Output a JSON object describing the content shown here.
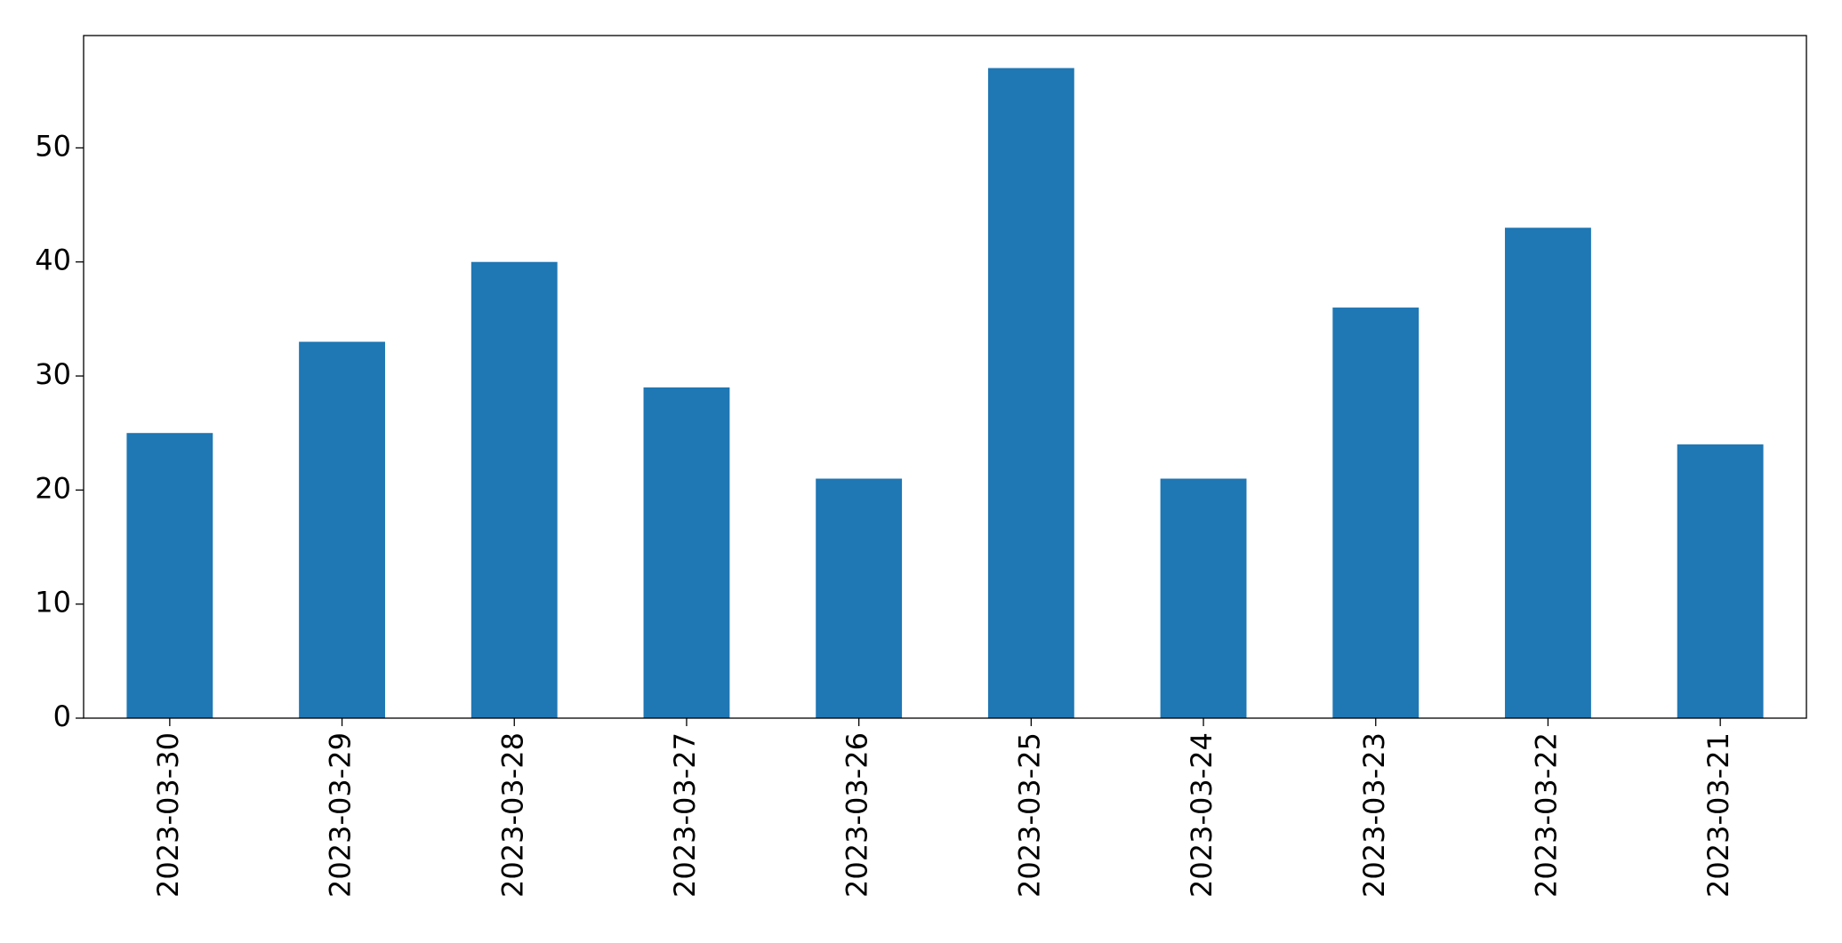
{
  "chart_data": {
    "type": "bar",
    "categories": [
      "2023-03-30",
      "2023-03-29",
      "2023-03-28",
      "2023-03-27",
      "2023-03-26",
      "2023-03-25",
      "2023-03-24",
      "2023-03-23",
      "2023-03-22",
      "2023-03-21"
    ],
    "values": [
      25,
      33,
      40,
      29,
      21,
      57,
      21,
      36,
      43,
      24
    ],
    "color": "#1f77b4",
    "ylim": [
      0,
      59.85
    ],
    "yticks": [
      0,
      10,
      20,
      30,
      40,
      50
    ],
    "grid": false
  }
}
